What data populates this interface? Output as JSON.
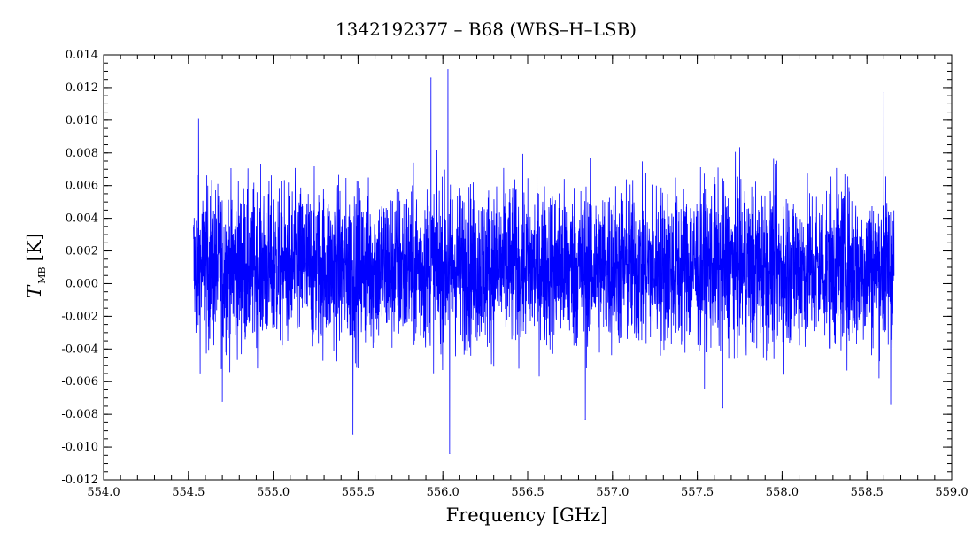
{
  "chart_data": {
    "type": "line",
    "title": "1342192377 – B68 (WBS–H–LSB)",
    "xlabel": "Frequency [GHz]",
    "ylabel_main": "T",
    "ylabel_sub": "MB",
    "ylabel_unit": "[K]",
    "xlim": [
      554.0,
      559.0
    ],
    "ylim": [
      -0.012,
      0.014
    ],
    "x_ticks": [
      "554.0",
      "554.5",
      "555.0",
      "555.5",
      "556.0",
      "556.5",
      "557.0",
      "557.5",
      "558.0",
      "558.5",
      "559.0"
    ],
    "y_ticks": [
      "-0.012",
      "-0.010",
      "-0.008",
      "-0.006",
      "-0.004",
      "-0.002",
      "0.000",
      "0.002",
      "0.004",
      "0.006",
      "0.008",
      "0.010",
      "0.012",
      "0.014"
    ],
    "series": [
      {
        "color": "#0000ff",
        "x_start": 554.53,
        "x_end": 558.66,
        "mean": 0.001,
        "noise_sigma": 0.0025,
        "spikes": [
          {
            "x": 554.56,
            "y": 0.0101
          },
          {
            "x": 554.7,
            "y": -0.0072
          },
          {
            "x": 555.47,
            "y": -0.0092
          },
          {
            "x": 555.93,
            "y": 0.0126
          },
          {
            "x": 556.03,
            "y": 0.0131
          },
          {
            "x": 556.04,
            "y": -0.0104
          },
          {
            "x": 556.84,
            "y": -0.0083
          },
          {
            "x": 557.65,
            "y": -0.0076
          },
          {
            "x": 558.6,
            "y": 0.0117
          },
          {
            "x": 558.64,
            "y": -0.0074
          }
        ]
      }
    ],
    "grid": false,
    "legend": "none"
  }
}
